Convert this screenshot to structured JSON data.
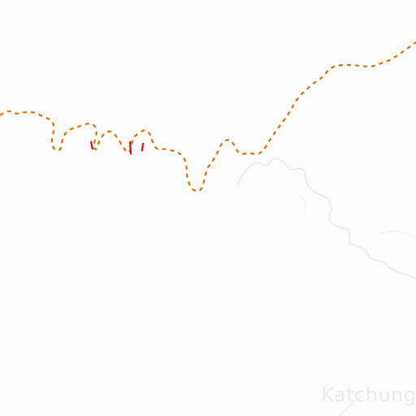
{
  "map": {
    "colors": {
      "background": "#fdfdfd",
      "boundary_casing": "#ffffff",
      "boundary_dash": "#e66e00",
      "boundary_dash_alt": "#ee0000",
      "river": "#eeeeee",
      "river_bank": "#f4f4f4",
      "label": "#ebebeb"
    },
    "labels": {
      "place": "Katchung"
    },
    "features": [
      {
        "kind": "international-boundary",
        "style": "dashed"
      },
      {
        "kind": "river",
        "style": "meander"
      }
    ]
  }
}
